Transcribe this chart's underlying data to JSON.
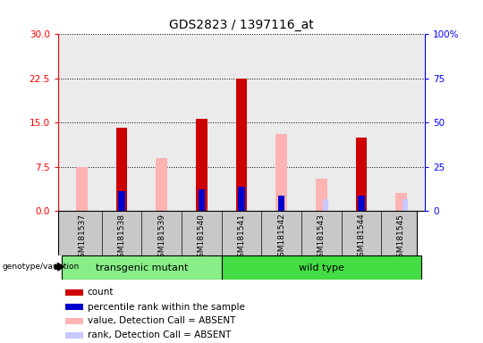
{
  "title": "GDS2823 / 1397116_at",
  "samples": [
    "GSM181537",
    "GSM181538",
    "GSM181539",
    "GSM181540",
    "GSM181541",
    "GSM181542",
    "GSM181543",
    "GSM181544",
    "GSM181545"
  ],
  "count_values": [
    0,
    14.2,
    0,
    15.6,
    22.5,
    0,
    0,
    12.5,
    0
  ],
  "percentile_values": [
    0,
    11.0,
    0,
    12.0,
    13.5,
    8.5,
    0,
    8.5,
    0
  ],
  "absent_value": [
    7.5,
    0,
    9.0,
    9.0,
    0,
    13.0,
    5.5,
    0,
    3.0
  ],
  "absent_rank": [
    0,
    0,
    0,
    0,
    0,
    0,
    6.5,
    0,
    6.5
  ],
  "groups": [
    "transgenic mutant",
    "transgenic mutant",
    "transgenic mutant",
    "transgenic mutant",
    "wild type",
    "wild type",
    "wild type",
    "wild type",
    "wild type"
  ],
  "group_colors": {
    "transgenic mutant": "#88EE88",
    "wild type": "#44DD44"
  },
  "ylim_left": [
    0,
    30
  ],
  "ylim_right": [
    0,
    100
  ],
  "yticks_left": [
    0,
    7.5,
    15,
    22.5,
    30
  ],
  "yticks_right": [
    0,
    25,
    50,
    75,
    100
  ],
  "color_count": "#CC0000",
  "color_percentile": "#0000CC",
  "color_absent_value": "#FFB3B3",
  "color_absent_rank": "#C8C8FF",
  "bg_plot": "#EBEBEB",
  "bg_sample_labels": "#C8C8C8",
  "legend_items": [
    {
      "color": "#CC0000",
      "label": "count"
    },
    {
      "color": "#0000CC",
      "label": "percentile rank within the sample"
    },
    {
      "color": "#FFB3B3",
      "label": "value, Detection Call = ABSENT"
    },
    {
      "color": "#C8C8FF",
      "label": "rank, Detection Call = ABSENT"
    }
  ]
}
